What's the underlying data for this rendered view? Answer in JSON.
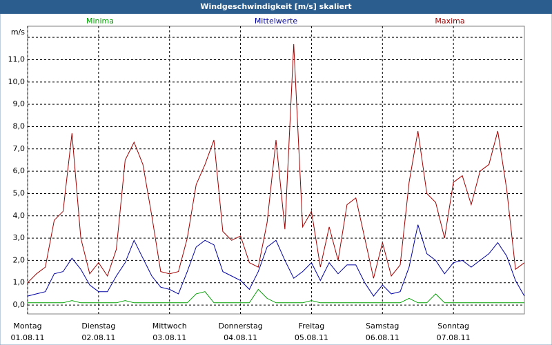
{
  "chart_data": {
    "type": "line",
    "title": "Windgeschwindigkeit [m/s] skaliert",
    "x": [
      0,
      3,
      6,
      9,
      12,
      15,
      18,
      21,
      24,
      27,
      30,
      33,
      36,
      39,
      42,
      45,
      48,
      51,
      54,
      57,
      60,
      63,
      66,
      69,
      72,
      75,
      78,
      81,
      84,
      87,
      90,
      93,
      96,
      99,
      102,
      105,
      108,
      111,
      114,
      117,
      120,
      123,
      126,
      129,
      132,
      135,
      138,
      141,
      144,
      147,
      150,
      153,
      156,
      159,
      162,
      165,
      168
    ],
    "series": [
      {
        "name": "Minima",
        "color": "#00a000",
        "values": [
          0.1,
          0.1,
          0.1,
          0.1,
          0.1,
          0.2,
          0.1,
          0.1,
          0.1,
          0.1,
          0.1,
          0.2,
          0.1,
          0.1,
          0.1,
          0.1,
          0.1,
          0.1,
          0.1,
          0.5,
          0.6,
          0.1,
          0.1,
          0.1,
          0.1,
          0.1,
          0.7,
          0.3,
          0.1,
          0.1,
          0.1,
          0.1,
          0.2,
          0.1,
          0.1,
          0.1,
          0.1,
          0.1,
          0.1,
          0.1,
          0.1,
          0.1,
          0.1,
          0.3,
          0.1,
          0.1,
          0.5,
          0.1,
          0.1,
          0.1,
          0.1,
          0.1,
          0.1,
          0.1,
          0.1,
          0.1,
          0.1
        ]
      },
      {
        "name": "Mittelwerte",
        "color": "#0000a0",
        "values": [
          0.4,
          0.5,
          0.6,
          1.4,
          1.5,
          2.1,
          1.6,
          0.9,
          0.6,
          0.6,
          1.3,
          1.9,
          2.9,
          2.1,
          1.3,
          0.8,
          0.7,
          0.5,
          1.5,
          2.6,
          2.9,
          2.7,
          1.5,
          1.3,
          1.1,
          0.7,
          1.5,
          2.6,
          2.9,
          2.0,
          1.2,
          1.5,
          1.9,
          1.1,
          1.9,
          1.4,
          1.8,
          1.8,
          1.0,
          0.4,
          0.9,
          0.5,
          0.6,
          1.7,
          3.6,
          2.3,
          2.0,
          1.4,
          1.9,
          2.0,
          1.7,
          2.0,
          2.3,
          2.8,
          2.2,
          1.1,
          0.4
        ]
      },
      {
        "name": "Maxima",
        "color": "#a00000",
        "values": [
          1.0,
          1.4,
          1.7,
          3.8,
          4.2,
          7.7,
          3.0,
          1.4,
          1.9,
          1.3,
          2.5,
          6.5,
          7.3,
          6.3,
          4.0,
          1.5,
          1.4,
          1.5,
          3.0,
          5.4,
          6.3,
          7.4,
          3.3,
          2.9,
          3.1,
          1.9,
          1.7,
          3.7,
          7.4,
          3.4,
          11.7,
          3.5,
          4.2,
          1.7,
          3.5,
          2.0,
          4.5,
          4.8,
          3.0,
          1.2,
          2.8,
          1.3,
          1.8,
          5.5,
          7.8,
          5.0,
          4.6,
          3.0,
          5.5,
          5.8,
          4.5,
          6.0,
          6.3,
          7.8,
          5.2,
          1.6,
          1.9
        ]
      }
    ],
    "xlim": [
      0,
      168
    ],
    "xticks": [
      {
        "value": 0,
        "label": "Montag",
        "date": "01.08.11"
      },
      {
        "value": 24,
        "label": "Dienstag",
        "date": "02.08.11"
      },
      {
        "value": 48,
        "label": "Mittwoch",
        "date": "03.08.11"
      },
      {
        "value": 72,
        "label": "Donnerstag",
        "date": "04.08.11"
      },
      {
        "value": 96,
        "label": "Freitag",
        "date": "05.08.11"
      },
      {
        "value": 120,
        "label": "Samstag",
        "date": "06.08.11"
      },
      {
        "value": 144,
        "label": "Sonntag",
        "date": "07.08.11"
      }
    ],
    "ylim": [
      -0.4,
      12.5
    ],
    "yticks": [
      {
        "value": 0,
        "label": "0,0"
      },
      {
        "value": 1,
        "label": "1,0"
      },
      {
        "value": 2,
        "label": "2,0"
      },
      {
        "value": 3,
        "label": "3,0"
      },
      {
        "value": 4,
        "label": "4,0"
      },
      {
        "value": 5,
        "label": "5,0"
      },
      {
        "value": 6,
        "label": "6,0"
      },
      {
        "value": 7,
        "label": "7,0"
      },
      {
        "value": 8,
        "label": "8,0"
      },
      {
        "value": 9,
        "label": "9,0"
      },
      {
        "value": 10,
        "label": "10,0"
      },
      {
        "value": 11,
        "label": "11,0"
      },
      {
        "value": 12,
        "label": "m/s"
      }
    ],
    "grid": true
  }
}
